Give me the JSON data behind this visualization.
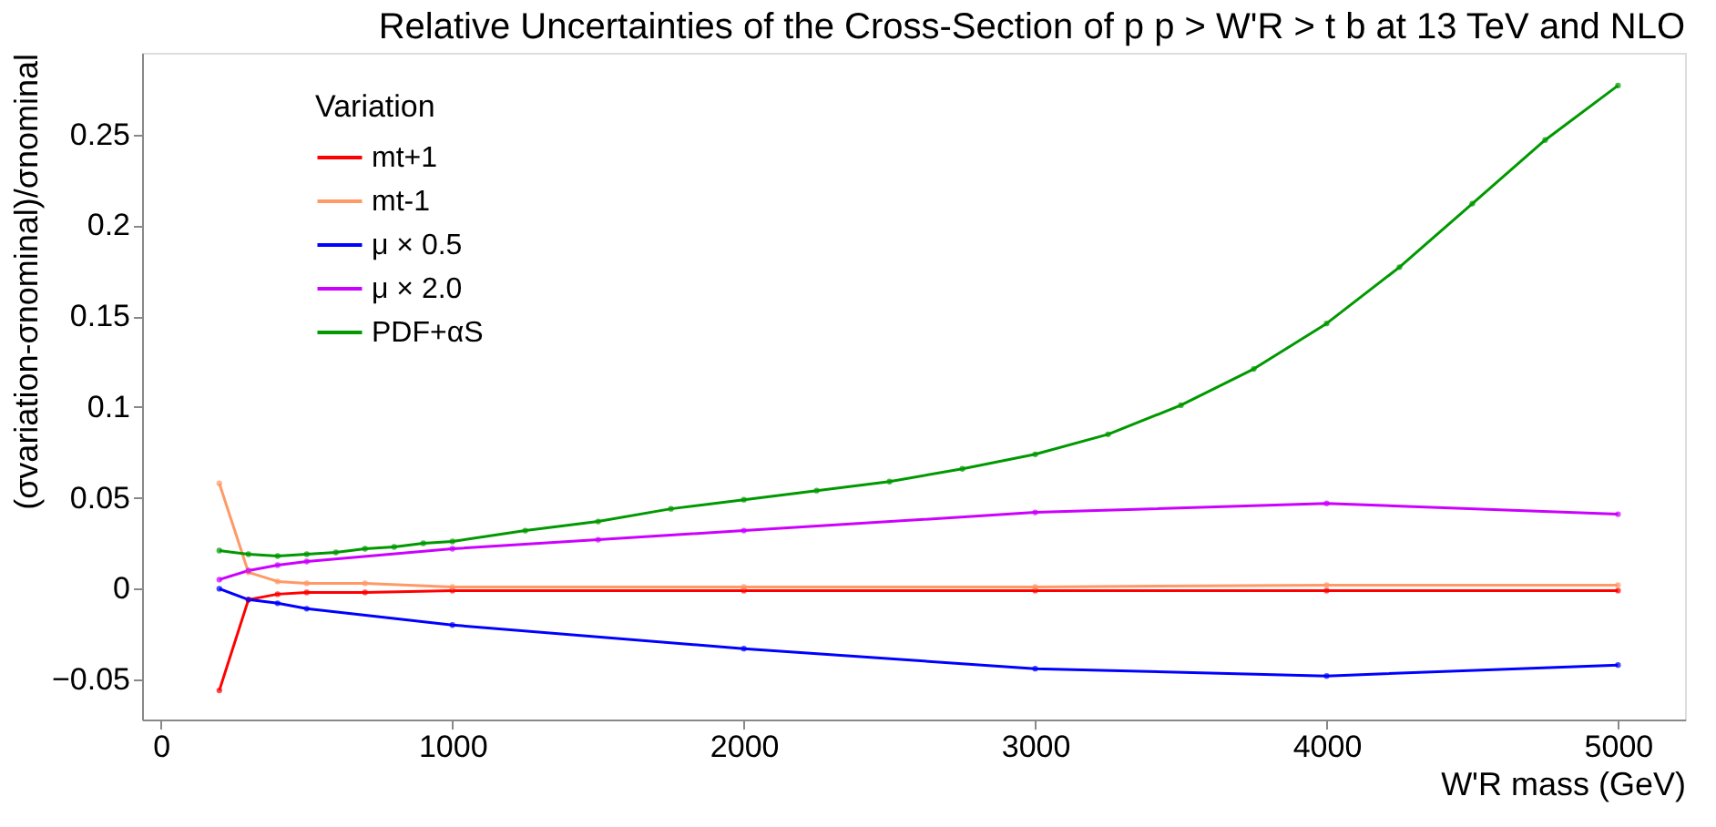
{
  "chart_data": {
    "type": "line",
    "title": "Relative Uncertainties of the Cross-Section of p p > W'R > t b at 13 TeV and NLO",
    "xlabel": "W'R mass (GeV)",
    "ylabel": "(σvariation-σnominal)/σnominal",
    "legend_title": "Variation",
    "legend": "top left",
    "grid": false,
    "marker": "circle",
    "line_style": "solid",
    "xlim": [
      -65,
      5230
    ],
    "xticks": [
      0,
      1000,
      2000,
      3000,
      4000,
      5000
    ],
    "ylim": [
      -0.072,
      0.295
    ],
    "yticks": [
      -0.05,
      0,
      0.05,
      0.1,
      0.15,
      0.2,
      0.25
    ],
    "series": [
      {
        "name": "mt+1",
        "color": "#ff0000",
        "x": [
          200,
          300,
          400,
          500,
          700,
          1000,
          2000,
          3000,
          4000,
          5000
        ],
        "values": [
          -0.056,
          -0.006,
          -0.003,
          -0.002,
          -0.002,
          -0.001,
          -0.001,
          -0.001,
          -0.001,
          -0.001
        ]
      },
      {
        "name": "mt-1",
        "color": "#ff9966",
        "x": [
          200,
          300,
          400,
          500,
          700,
          1000,
          2000,
          3000,
          4000,
          5000
        ],
        "values": [
          0.058,
          0.009,
          0.004,
          0.003,
          0.003,
          0.001,
          0.001,
          0.001,
          0.002,
          0.002
        ]
      },
      {
        "name": "μ × 0.5",
        "color": "#0000ff",
        "x": [
          200,
          300,
          400,
          500,
          1000,
          2000,
          3000,
          4000,
          5000
        ],
        "values": [
          0,
          -0.006,
          -0.008,
          -0.011,
          -0.02,
          -0.033,
          -0.044,
          -0.048,
          -0.042
        ]
      },
      {
        "name": "μ × 2.0",
        "color": "#cc00ff",
        "x": [
          200,
          300,
          400,
          500,
          1000,
          1500,
          2000,
          3000,
          4000,
          5000
        ],
        "values": [
          0.005,
          0.01,
          0.013,
          0.015,
          0.022,
          0.027,
          0.032,
          0.042,
          0.047,
          0.041
        ]
      },
      {
        "name": "PDF+αS",
        "color": "#009900",
        "x": [
          200,
          300,
          400,
          500,
          600,
          700,
          800,
          900,
          1000,
          1250,
          1500,
          1750,
          2000,
          2250,
          2500,
          2750,
          3000,
          3250,
          3500,
          3750,
          4000,
          4250,
          4500,
          4750,
          5000
        ],
        "values": [
          0.021,
          0.019,
          0.018,
          0.019,
          0.02,
          0.022,
          0.023,
          0.025,
          0.026,
          0.032,
          0.037,
          0.044,
          0.049,
          0.054,
          0.059,
          0.066,
          0.074,
          0.085,
          0.101,
          0.121,
          0.146,
          0.177,
          0.212,
          0.247,
          0.277
        ]
      }
    ]
  }
}
